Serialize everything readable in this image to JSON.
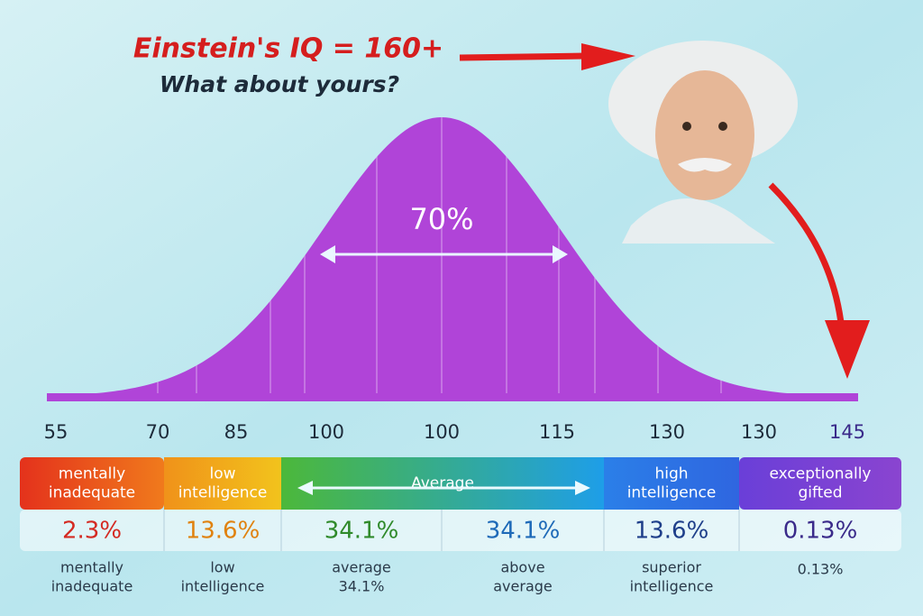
{
  "header": {
    "title": "Einstein's IQ = 160+",
    "subtitle": "What about yours?"
  },
  "curve": {
    "center_label": "70%"
  },
  "axis_labels": [
    "55",
    "70",
    "85",
    "100",
    "100",
    "115",
    "130",
    "130",
    "145"
  ],
  "header_boxes": [
    {
      "lines": [
        "mentally",
        "inadequate"
      ]
    },
    {
      "lines": [
        "low",
        "intelligence"
      ]
    },
    {
      "lines": [
        "Average"
      ]
    },
    {
      "lines": [
        "high",
        "intelligence"
      ]
    },
    {
      "lines": [
        "exceptionally",
        "gifted"
      ]
    }
  ],
  "cells": [
    {
      "percent": "2.3%",
      "caption": [
        "mentally",
        "inadequate"
      ]
    },
    {
      "percent": "13.6%",
      "caption": [
        "low",
        "intelligence"
      ]
    },
    {
      "percent": "34.1%",
      "caption": [
        "average",
        "34.1%"
      ]
    },
    {
      "percent": "34.1%",
      "caption": [
        "above",
        "average"
      ]
    },
    {
      "percent": "13.6%",
      "caption": [
        "superior",
        "intelligence"
      ]
    },
    {
      "percent": "0.13%",
      "caption": [
        "0.13%"
      ]
    }
  ]
}
